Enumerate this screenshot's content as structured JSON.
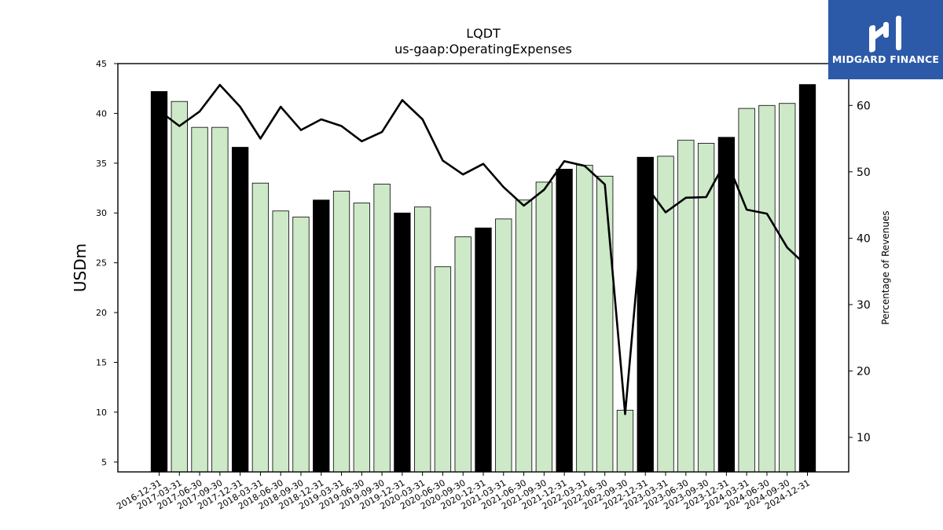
{
  "brand": {
    "name": "MIDGARD FINANCE",
    "icon": "midgard-logo-icon",
    "background": "#2c5aa8"
  },
  "chart_data": {
    "type": "bar",
    "title": "LQDT",
    "subtitle": "us-gaap:OperatingExpenses",
    "ylabel": "USDm",
    "y2label": "Percentage of Revenues",
    "ylim": [
      4,
      45
    ],
    "yticks": [
      5,
      10,
      15,
      20,
      25,
      30,
      35,
      40,
      45
    ],
    "y2lim": [
      4.8,
      66.3
    ],
    "y2ticks": [
      10,
      20,
      30,
      40,
      50,
      60
    ],
    "grid": false,
    "colors": {
      "annual_bar": "#000000",
      "quarter_bar": "#cde9c8",
      "line": "#000000"
    },
    "categories": [
      "2016-12-31",
      "2017-03-31",
      "2017-06-30",
      "2017-09-30",
      "2017-12-31",
      "2018-03-31",
      "2018-06-30",
      "2018-09-30",
      "2018-12-31",
      "2019-03-31",
      "2019-06-30",
      "2019-09-30",
      "2019-12-31",
      "2020-03-31",
      "2020-06-30",
      "2020-09-30",
      "2020-12-31",
      "2021-03-31",
      "2021-06-30",
      "2021-09-30",
      "2021-12-31",
      "2022-03-31",
      "2022-06-30",
      "2022-09-30",
      "2022-12-31",
      "2023-03-31",
      "2023-06-30",
      "2023-09-30",
      "2023-12-31",
      "2024-03-31",
      "2024-06-30",
      "2024-09-30",
      "2024-12-31"
    ],
    "series": [
      {
        "type": "bar",
        "axis": "left",
        "values": [
          42.2,
          41.2,
          38.6,
          38.6,
          36.6,
          33.0,
          30.2,
          29.6,
          31.3,
          32.2,
          31.0,
          32.9,
          30.0,
          30.6,
          24.6,
          27.6,
          28.5,
          29.4,
          31.3,
          33.1,
          34.4,
          34.8,
          33.7,
          10.2,
          35.6,
          35.7,
          37.3,
          37.0,
          37.6,
          40.5,
          40.8,
          41.0,
          42.9
        ],
        "annual": [
          true,
          false,
          false,
          false,
          true,
          false,
          false,
          false,
          true,
          false,
          false,
          false,
          true,
          false,
          false,
          false,
          true,
          false,
          false,
          false,
          true,
          false,
          false,
          false,
          true,
          false,
          false,
          false,
          true,
          false,
          false,
          false,
          true
        ]
      },
      {
        "type": "line",
        "axis": "right",
        "values": [
          59.2,
          56.9,
          59.1,
          63.1,
          59.8,
          55.0,
          59.8,
          56.3,
          57.9,
          56.9,
          54.6,
          56.0,
          60.8,
          57.9,
          51.7,
          49.6,
          51.2,
          47.7,
          44.9,
          47.3,
          51.6,
          50.9,
          48.1,
          13.5,
          48.0,
          43.9,
          46.1,
          46.2,
          51.8,
          44.3,
          43.7,
          38.6,
          35.7
        ]
      }
    ]
  }
}
